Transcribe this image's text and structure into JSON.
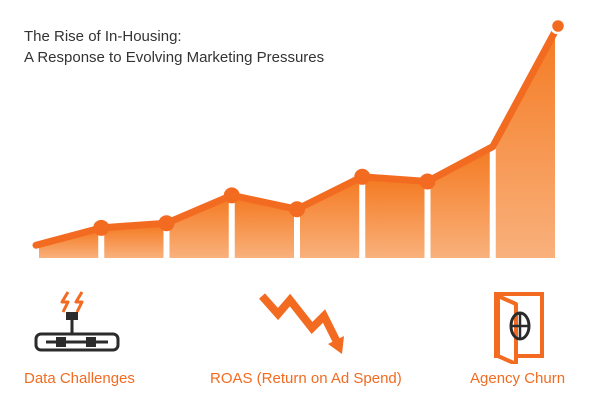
{
  "title": "The Rise of In-Housing:",
  "subtitle": "A Response to Evolving Marketing Pressures",
  "colors": {
    "accent": "#f26b21",
    "bar_top": "#f47a22",
    "bar_bottom": "#f8a56a",
    "icon_dark": "#2b2b2b",
    "text": "#333333"
  },
  "chart_data": {
    "type": "area",
    "title": "The Rise of In-Housing: A Response to Evolving Marketing Pressures",
    "x": [
      0,
      1,
      2,
      3,
      4,
      5,
      6,
      7,
      8
    ],
    "values": [
      5.5,
      13,
      15,
      27,
      21,
      35,
      33,
      48,
      100
    ],
    "markers": [
      1,
      2,
      3,
      4,
      5,
      6,
      8
    ],
    "ylim": [
      0,
      100
    ],
    "grid": false,
    "legend": "none",
    "xlabel": "",
    "ylabel": ""
  },
  "factors": [
    {
      "label": "Data Challenges",
      "icon": "lightning-connector-icon"
    },
    {
      "label": "ROAS (Return on Ad Spend)",
      "icon": "zigzag-down-arrow-icon"
    },
    {
      "label": "Agency Churn",
      "icon": "open-door-icon"
    }
  ]
}
